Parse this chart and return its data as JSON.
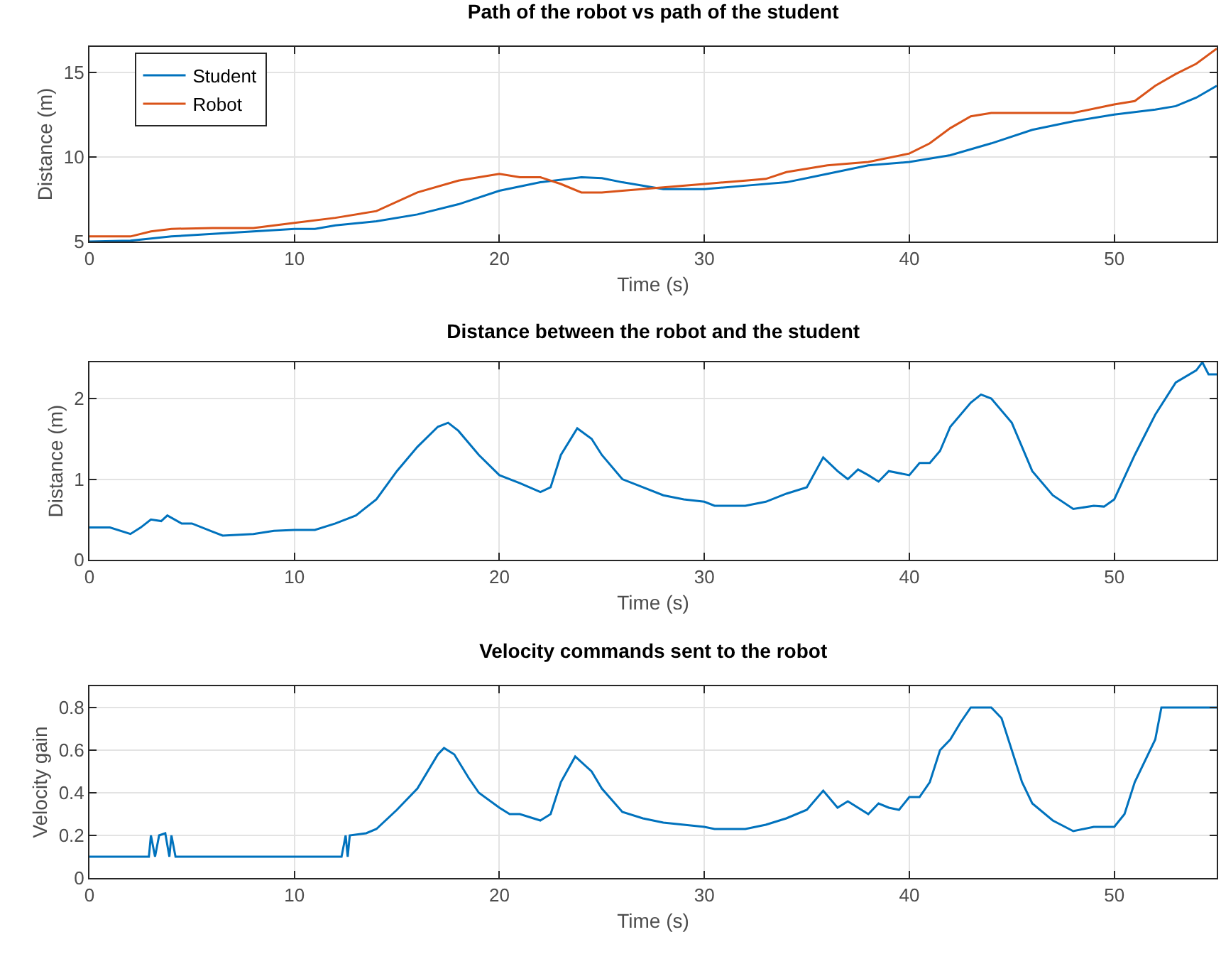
{
  "chart_data": [
    {
      "type": "line",
      "title": "Path of the robot vs path of the student",
      "xlabel": "Time (s)",
      "ylabel": "Distance (m)",
      "xlim": [
        0,
        55
      ],
      "xticks": [
        0,
        10,
        20,
        30,
        40,
        50
      ],
      "ylim": [
        5,
        16.5
      ],
      "yticks": [
        5,
        10,
        15
      ],
      "grid": true,
      "legend": "top left",
      "series": [
        {
          "name": "Student",
          "color": "#0072bd",
          "x": [
            0,
            2,
            4,
            6,
            8,
            10,
            11,
            12,
            14,
            16,
            18,
            20,
            22,
            24,
            25,
            26,
            28,
            30,
            32,
            34,
            36,
            38,
            40,
            42,
            44,
            46,
            48,
            50,
            52,
            53,
            54,
            55
          ],
          "values": [
            5.0,
            5.05,
            5.3,
            5.45,
            5.6,
            5.75,
            5.75,
            5.95,
            6.2,
            6.6,
            7.2,
            8.0,
            8.5,
            8.8,
            8.75,
            8.5,
            8.1,
            8.1,
            8.3,
            8.5,
            9.0,
            9.5,
            9.7,
            10.1,
            10.8,
            11.6,
            12.1,
            12.5,
            12.8,
            13.0,
            13.5,
            14.2
          ]
        },
        {
          "name": "Robot",
          "color": "#d95319",
          "x": [
            0,
            2,
            3,
            4,
            6,
            8,
            10,
            12,
            14,
            16,
            18,
            20,
            21,
            22,
            23,
            24,
            25,
            26,
            28,
            30,
            32,
            33,
            34,
            36,
            38,
            40,
            41,
            42,
            43,
            44,
            46,
            48,
            50,
            51,
            52,
            53,
            54,
            55
          ],
          "values": [
            5.3,
            5.3,
            5.6,
            5.75,
            5.8,
            5.8,
            6.1,
            6.4,
            6.8,
            7.9,
            8.6,
            9.0,
            8.8,
            8.8,
            8.4,
            7.9,
            7.9,
            8.0,
            8.2,
            8.4,
            8.6,
            8.7,
            9.1,
            9.5,
            9.7,
            10.2,
            10.8,
            11.7,
            12.4,
            12.6,
            12.6,
            12.6,
            13.1,
            13.3,
            14.2,
            14.9,
            15.5,
            16.4
          ]
        }
      ]
    },
    {
      "type": "line",
      "title": "Distance between the robot and the student",
      "xlabel": "Time (s)",
      "ylabel": "Distance (m)",
      "xlim": [
        0,
        55
      ],
      "xticks": [
        0,
        10,
        20,
        30,
        40,
        50
      ],
      "ylim": [
        0,
        2.45
      ],
      "yticks": [
        0,
        1,
        2
      ],
      "grid": true,
      "series": [
        {
          "color": "#0072bd",
          "x": [
            0,
            1,
            2,
            2.5,
            3,
            3.5,
            3.8,
            4.5,
            5,
            6,
            6.5,
            8,
            9,
            10,
            11,
            12,
            13,
            14,
            15,
            16,
            17,
            17.5,
            18,
            19,
            20,
            21,
            22,
            22.5,
            23,
            23.8,
            24.5,
            25,
            26,
            27,
            28,
            29,
            30,
            30.5,
            32,
            33,
            34,
            35,
            35.8,
            36.5,
            37,
            37.5,
            38,
            38.5,
            39,
            40,
            40.5,
            41,
            41.5,
            42,
            43,
            43.5,
            44,
            45,
            46,
            47,
            48,
            49,
            49.5,
            50,
            51,
            52,
            53,
            54,
            54.3,
            54.6,
            55
          ],
          "values": [
            0.4,
            0.4,
            0.32,
            0.4,
            0.5,
            0.48,
            0.55,
            0.45,
            0.45,
            0.35,
            0.3,
            0.32,
            0.36,
            0.37,
            0.37,
            0.45,
            0.55,
            0.75,
            1.1,
            1.4,
            1.65,
            1.7,
            1.6,
            1.3,
            1.05,
            0.95,
            0.84,
            0.9,
            1.3,
            1.63,
            1.5,
            1.3,
            1.0,
            0.9,
            0.8,
            0.75,
            0.72,
            0.67,
            0.67,
            0.72,
            0.82,
            0.9,
            1.27,
            1.1,
            1.0,
            1.12,
            1.05,
            0.97,
            1.1,
            1.05,
            1.2,
            1.2,
            1.35,
            1.65,
            1.95,
            2.05,
            2.0,
            1.7,
            1.1,
            0.8,
            0.63,
            0.67,
            0.66,
            0.75,
            1.3,
            1.8,
            2.2,
            2.35,
            2.45,
            2.3,
            2.3
          ]
        }
      ]
    },
    {
      "type": "line",
      "title": "Velocity commands sent to the robot",
      "xlabel": "Time (s)",
      "ylabel": "Velocity gain",
      "xlim": [
        0,
        55
      ],
      "xticks": [
        0,
        10,
        20,
        30,
        40,
        50
      ],
      "ylim": [
        0,
        0.9
      ],
      "yticks": [
        0,
        0.2,
        0.4,
        0.6,
        0.8
      ],
      "grid": true,
      "series": [
        {
          "color": "#0072bd",
          "x": [
            0,
            2.9,
            3,
            3.2,
            3.4,
            3.7,
            3.9,
            4.0,
            4.2,
            12.3,
            12.5,
            12.6,
            12.7,
            13.5,
            14,
            15,
            16,
            17,
            17.3,
            17.8,
            18.5,
            19,
            20,
            20.5,
            21,
            22,
            22.5,
            23,
            23.7,
            24.5,
            25,
            26,
            27,
            28,
            29,
            30,
            30.5,
            32,
            33,
            34,
            35,
            35.8,
            36.5,
            37,
            38,
            38.5,
            39,
            39.5,
            40,
            40.5,
            41,
            41.5,
            42,
            42.5,
            43,
            44,
            44.5,
            45,
            45.5,
            46,
            47,
            48,
            49,
            50,
            50.5,
            51,
            52,
            52.3,
            55
          ],
          "values": [
            0.1,
            0.1,
            0.2,
            0.1,
            0.2,
            0.21,
            0.1,
            0.2,
            0.1,
            0.1,
            0.2,
            0.1,
            0.2,
            0.21,
            0.23,
            0.32,
            0.42,
            0.58,
            0.61,
            0.58,
            0.47,
            0.4,
            0.33,
            0.3,
            0.3,
            0.27,
            0.3,
            0.45,
            0.57,
            0.5,
            0.42,
            0.31,
            0.28,
            0.26,
            0.25,
            0.24,
            0.23,
            0.23,
            0.25,
            0.28,
            0.32,
            0.41,
            0.33,
            0.36,
            0.3,
            0.35,
            0.33,
            0.32,
            0.38,
            0.38,
            0.45,
            0.6,
            0.65,
            0.73,
            0.8,
            0.8,
            0.75,
            0.6,
            0.45,
            0.35,
            0.27,
            0.22,
            0.24,
            0.24,
            0.3,
            0.45,
            0.65,
            0.8,
            0.8
          ]
        }
      ]
    }
  ]
}
